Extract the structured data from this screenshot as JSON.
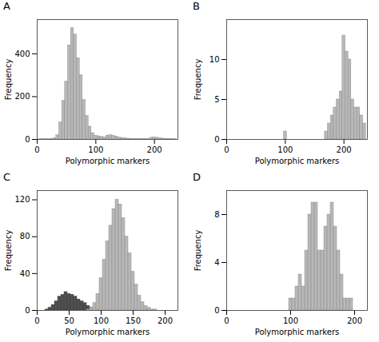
{
  "chart_data": [
    {
      "type": "histogram",
      "title": "A",
      "xlabel": "Polymorphic markers",
      "ylabel": "Frequency",
      "color": "#b8b8b8",
      "bins": [
        2.5,
        7.5,
        12.5,
        17.5,
        22.5,
        27.5,
        32.5,
        37.5,
        42.5,
        47.5,
        52.5,
        57.5,
        62.5,
        67.5,
        72.5,
        77.5,
        82.5,
        87.5,
        92.5,
        97.5,
        102.5,
        107.5,
        112.5,
        117.5,
        122.5,
        127.5,
        132.5,
        137.5,
        142.5,
        147.5,
        152.5,
        157.5,
        162.5,
        167.5,
        172.5,
        177.5,
        182.5,
        187.5,
        192.5,
        197.5,
        202.5,
        207.5,
        212.5,
        217.5,
        222.5,
        227.5,
        232.5,
        237.5
      ],
      "values": [
        1,
        1,
        1,
        1,
        2,
        5,
        20,
        80,
        180,
        270,
        440,
        520,
        490,
        380,
        300,
        185,
        110,
        60,
        30,
        18,
        15,
        12,
        10,
        18,
        20,
        18,
        14,
        10,
        7,
        5,
        4,
        3,
        2,
        2,
        2,
        2,
        2,
        2,
        8,
        10,
        8,
        5,
        4,
        3,
        3,
        2,
        1
      ],
      "xlim": [
        0,
        240
      ],
      "ylim": [
        0,
        560
      ],
      "xticks": [
        0,
        100,
        200
      ],
      "yticks": [
        0,
        200,
        400
      ]
    },
    {
      "type": "histogram",
      "title": "B",
      "xlabel": "Polymorphic markers",
      "ylabel": "Frequency",
      "color": "#b8b8b8",
      "bins": [
        72.5,
        77.5,
        82.5,
        87.5,
        92.5,
        97.5,
        102.5,
        107.5,
        112.5,
        117.5,
        122.5,
        127.5,
        132.5,
        137.5,
        142.5,
        147.5,
        152.5,
        157.5,
        162.5,
        167.5,
        172.5,
        177.5,
        182.5,
        187.5,
        192.5,
        197.5,
        202.5,
        207.5,
        212.5,
        217.5,
        222.5,
        227.5,
        232.5,
        237.5
      ],
      "values": [
        0,
        0,
        0,
        0,
        0,
        1,
        0,
        0,
        0,
        0,
        0,
        0,
        0,
        0,
        0,
        0,
        0,
        0,
        0,
        1,
        2,
        3,
        4,
        5,
        6,
        13,
        11,
        10,
        5,
        4,
        4,
        3,
        2
      ],
      "xlim": [
        0,
        240
      ],
      "ylim": [
        0,
        15
      ],
      "xticks": [
        0,
        100,
        200
      ],
      "yticks": [
        0,
        5,
        10
      ]
    },
    {
      "type": "histogram",
      "title": "C",
      "xlabel": "Polymorphic markers",
      "ylabel": "Frequency",
      "series": [
        {
          "color": "#505050",
          "bins": [
            12.5,
            17.5,
            22.5,
            27.5,
            32.5,
            37.5,
            42.5,
            47.5,
            52.5,
            57.5,
            62.5,
            67.5,
            72.5,
            77.5,
            82.5,
            87.5
          ],
          "values": [
            1,
            3,
            6,
            10,
            15,
            17,
            20,
            18,
            17,
            15,
            12,
            10,
            8,
            5,
            3
          ]
        },
        {
          "color": "#b8b8b8",
          "bins": [
            77.5,
            82.5,
            87.5,
            92.5,
            97.5,
            102.5,
            107.5,
            112.5,
            117.5,
            122.5,
            127.5,
            132.5,
            137.5,
            142.5,
            147.5,
            152.5,
            157.5,
            162.5,
            167.5,
            172.5,
            177.5,
            182.5,
            187.5
          ],
          "values": [
            1,
            3,
            8,
            18,
            35,
            55,
            75,
            92,
            110,
            120,
            115,
            100,
            80,
            62,
            42,
            28,
            16,
            9,
            5,
            3,
            1,
            1
          ]
        }
      ],
      "xlim": [
        0,
        220
      ],
      "ylim": [
        0,
        130
      ],
      "xticks": [
        0,
        50,
        100,
        150,
        200
      ],
      "yticks": [
        0,
        40,
        80,
        120
      ]
    },
    {
      "type": "histogram",
      "title": "D",
      "xlabel": "Polymorphic markers",
      "ylabel": "Frequency",
      "color": "#b8b8b8",
      "bins": [
        97.5,
        102.5,
        107.5,
        112.5,
        117.5,
        122.5,
        127.5,
        132.5,
        137.5,
        142.5,
        147.5,
        152.5,
        157.5,
        162.5,
        167.5,
        172.5,
        177.5,
        182.5,
        187.5,
        192.5,
        197.5
      ],
      "values": [
        1,
        1,
        2,
        3,
        2,
        5,
        8,
        9,
        9,
        5,
        5,
        7,
        8,
        9,
        7,
        5,
        3,
        1,
        1,
        1
      ],
      "xlim": [
        0,
        220
      ],
      "ylim": [
        0,
        10
      ],
      "xticks": [
        0,
        100,
        200
      ],
      "yticks": [
        0,
        4,
        8
      ]
    }
  ]
}
